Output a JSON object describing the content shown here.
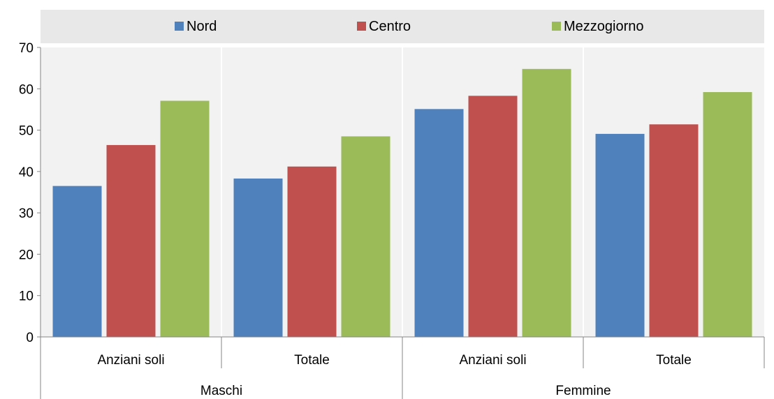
{
  "chart_data": {
    "type": "bar",
    "title": "",
    "xlabel": "",
    "ylabel": "",
    "ylim": [
      0,
      70
    ],
    "yticks": [
      0,
      10,
      20,
      30,
      40,
      50,
      60,
      70
    ],
    "grid": false,
    "legend_position": "top",
    "groups": [
      {
        "label": "Maschi",
        "categories": [
          "Anziani soli",
          "Totale"
        ]
      },
      {
        "label": "Femmine",
        "categories": [
          "Anziani soli",
          "Totale"
        ]
      }
    ],
    "categories": [
      "Anziani soli",
      "Totale",
      "Anziani soli",
      "Totale"
    ],
    "series": [
      {
        "name": "Nord",
        "color": "#4F81BD",
        "values": [
          36.5,
          38.3,
          55.1,
          49.1
        ]
      },
      {
        "name": "Centro",
        "color": "#C0504D",
        "values": [
          46.4,
          41.2,
          58.3,
          51.4
        ]
      },
      {
        "name": "Mezzogiorno",
        "color": "#9BBB59",
        "values": [
          57.1,
          48.5,
          64.8,
          59.2
        ]
      }
    ],
    "colors": {
      "plot_background": "#F2F2F2",
      "legend_background": "#E8E8E8",
      "separator": "#FFFFFF",
      "axis": "#868686"
    }
  }
}
